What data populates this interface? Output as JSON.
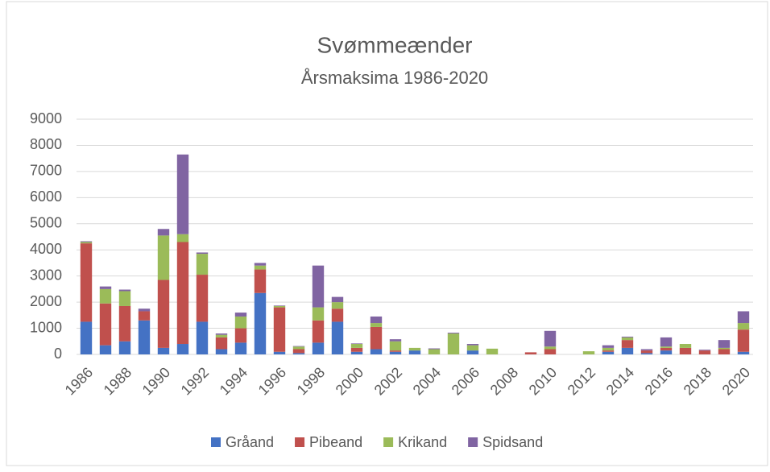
{
  "chart_data": {
    "type": "stacked_bar",
    "title": "Svømmeænder",
    "subtitle": "Årsmaksima 1986-2020",
    "categories": [
      "1986",
      null,
      "1988",
      null,
      "1990",
      null,
      "1992",
      null,
      "1994",
      null,
      "1996",
      null,
      "1998",
      null,
      "2000",
      null,
      "2002",
      null,
      "2004",
      null,
      "2006",
      null,
      "2008",
      null,
      "2010",
      null,
      "2012",
      null,
      "2014",
      null,
      "2016",
      null,
      "2018",
      null,
      "2020"
    ],
    "series": [
      {
        "name": "Gråand",
        "color": "#4472c4",
        "values": [
          1250,
          350,
          500,
          1300,
          250,
          400,
          1250,
          200,
          450,
          2350,
          100,
          50,
          450,
          1250,
          100,
          200,
          100,
          150,
          0,
          0,
          150,
          0,
          0,
          0,
          0,
          0,
          0,
          100,
          250,
          50,
          150,
          0,
          0,
          0,
          100
        ]
      },
      {
        "name": "Pibeand",
        "color": "#c0504d",
        "values": [
          3000,
          1600,
          1350,
          350,
          2600,
          3900,
          1800,
          450,
          550,
          900,
          1700,
          150,
          850,
          500,
          150,
          850,
          50,
          0,
          0,
          0,
          0,
          0,
          0,
          80,
          200,
          0,
          0,
          50,
          300,
          100,
          100,
          250,
          150,
          200,
          850
        ]
      },
      {
        "name": "Krikand",
        "color": "#9bbb59",
        "values": [
          50,
          550,
          570,
          0,
          1700,
          300,
          800,
          100,
          450,
          150,
          50,
          100,
          500,
          250,
          150,
          150,
          350,
          100,
          200,
          800,
          200,
          220,
          0,
          0,
          100,
          0,
          120,
          100,
          100,
          0,
          50,
          150,
          0,
          50,
          250
        ]
      },
      {
        "name": "Spidsand",
        "color": "#8064a2",
        "values": [
          30,
          100,
          60,
          100,
          250,
          3050,
          50,
          50,
          150,
          100,
          20,
          20,
          1600,
          200,
          20,
          250,
          80,
          0,
          30,
          30,
          50,
          0,
          0,
          0,
          600,
          0,
          0,
          100,
          30,
          50,
          350,
          0,
          30,
          300,
          450
        ]
      }
    ],
    "ylim": [
      0,
      9000
    ],
    "yticks": [
      0,
      1000,
      2000,
      3000,
      4000,
      5000,
      6000,
      7000,
      8000,
      9000
    ],
    "grid": true,
    "legend": "bottom"
  }
}
